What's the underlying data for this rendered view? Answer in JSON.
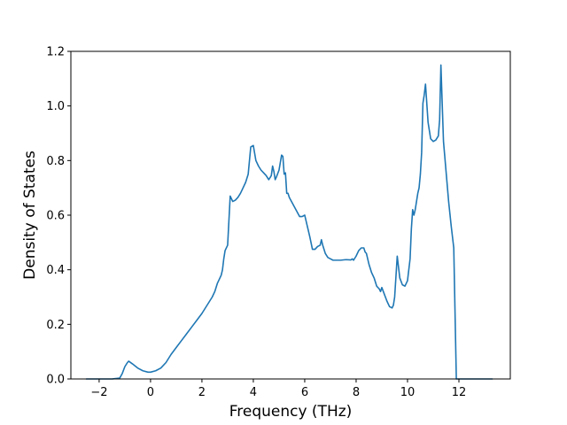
{
  "chart_data": {
    "type": "line",
    "title": "",
    "xlabel": "Frequency (THz)",
    "ylabel": "Density of States",
    "xlim": [
      -3.1,
      14.0
    ],
    "ylim": [
      0.0,
      1.2
    ],
    "xticks": [
      -2,
      0,
      2,
      4,
      6,
      8,
      10,
      12
    ],
    "xtick_labels": [
      "−2",
      "0",
      "2",
      "4",
      "6",
      "8",
      "10",
      "12"
    ],
    "yticks": [
      0.0,
      0.2,
      0.4,
      0.6,
      0.8,
      1.0,
      1.2
    ],
    "ytick_labels": [
      "0.0",
      "0.2",
      "0.4",
      "0.6",
      "0.8",
      "1.0",
      "1.2"
    ],
    "grid": false,
    "legend": "none",
    "series": [
      {
        "color": "#1f77b4",
        "x": [
          -2.5,
          -2.0,
          -1.5,
          -1.2,
          -1.1,
          -1.0,
          -0.9,
          -0.85,
          -0.7,
          -0.5,
          -0.3,
          -0.1,
          0.0,
          0.2,
          0.4,
          0.6,
          0.8,
          1.0,
          1.2,
          1.4,
          1.6,
          1.8,
          2.0,
          2.2,
          2.4,
          2.5,
          2.6,
          2.7,
          2.75,
          2.8,
          2.85,
          2.9,
          3.0,
          3.1,
          3.2,
          3.3,
          3.4,
          3.5,
          3.6,
          3.7,
          3.8,
          3.85,
          3.9,
          4.0,
          4.1,
          4.2,
          4.3,
          4.4,
          4.5,
          4.6,
          4.7,
          4.75,
          4.8,
          4.85,
          4.9,
          5.0,
          5.1,
          5.15,
          5.2,
          5.25,
          5.3,
          5.35,
          5.4,
          5.6,
          5.8,
          5.9,
          6.0,
          6.1,
          6.2,
          6.3,
          6.4,
          6.5,
          6.6,
          6.65,
          6.7,
          6.8,
          6.9,
          7.0,
          7.1,
          7.2,
          7.4,
          7.6,
          7.8,
          7.85,
          7.9,
          8.0,
          8.1,
          8.2,
          8.3,
          8.35,
          8.4,
          8.5,
          8.6,
          8.7,
          8.8,
          8.9,
          8.95,
          9.0,
          9.1,
          9.2,
          9.3,
          9.4,
          9.45,
          9.5,
          9.6,
          9.7,
          9.8,
          9.9,
          10.0,
          10.1,
          10.15,
          10.2,
          10.25,
          10.3,
          10.4,
          10.45,
          10.5,
          10.55,
          10.6,
          10.65,
          10.7,
          10.8,
          10.9,
          11.0,
          11.1,
          11.2,
          11.25,
          11.3,
          11.4,
          11.5,
          11.6,
          11.7,
          11.8,
          11.9,
          12.0,
          12.5,
          13.0,
          13.3
        ],
        "y": [
          0.0,
          0.0,
          0.0,
          0.003,
          0.02,
          0.045,
          0.06,
          0.065,
          0.055,
          0.04,
          0.03,
          0.025,
          0.025,
          0.03,
          0.04,
          0.06,
          0.09,
          0.115,
          0.14,
          0.165,
          0.19,
          0.215,
          0.24,
          0.27,
          0.3,
          0.32,
          0.35,
          0.37,
          0.38,
          0.4,
          0.44,
          0.47,
          0.49,
          0.67,
          0.65,
          0.655,
          0.665,
          0.68,
          0.7,
          0.72,
          0.75,
          0.8,
          0.85,
          0.855,
          0.8,
          0.78,
          0.765,
          0.755,
          0.745,
          0.73,
          0.745,
          0.78,
          0.76,
          0.73,
          0.74,
          0.765,
          0.82,
          0.815,
          0.75,
          0.755,
          0.68,
          0.68,
          0.665,
          0.63,
          0.595,
          0.595,
          0.6,
          0.56,
          0.52,
          0.475,
          0.475,
          0.485,
          0.49,
          0.51,
          0.49,
          0.46,
          0.445,
          0.44,
          0.435,
          0.435,
          0.435,
          0.437,
          0.436,
          0.44,
          0.435,
          0.45,
          0.47,
          0.48,
          0.48,
          0.465,
          0.46,
          0.42,
          0.39,
          0.37,
          0.34,
          0.33,
          0.32,
          0.335,
          0.31,
          0.285,
          0.265,
          0.26,
          0.27,
          0.3,
          0.45,
          0.37,
          0.345,
          0.34,
          0.36,
          0.44,
          0.55,
          0.62,
          0.6,
          0.62,
          0.68,
          0.7,
          0.75,
          0.83,
          1.01,
          1.04,
          1.08,
          0.94,
          0.88,
          0.87,
          0.875,
          0.89,
          0.95,
          1.15,
          0.87,
          0.76,
          0.65,
          0.56,
          0.48,
          0.0,
          0.0,
          0.0,
          0.0,
          0.0
        ]
      }
    ]
  }
}
